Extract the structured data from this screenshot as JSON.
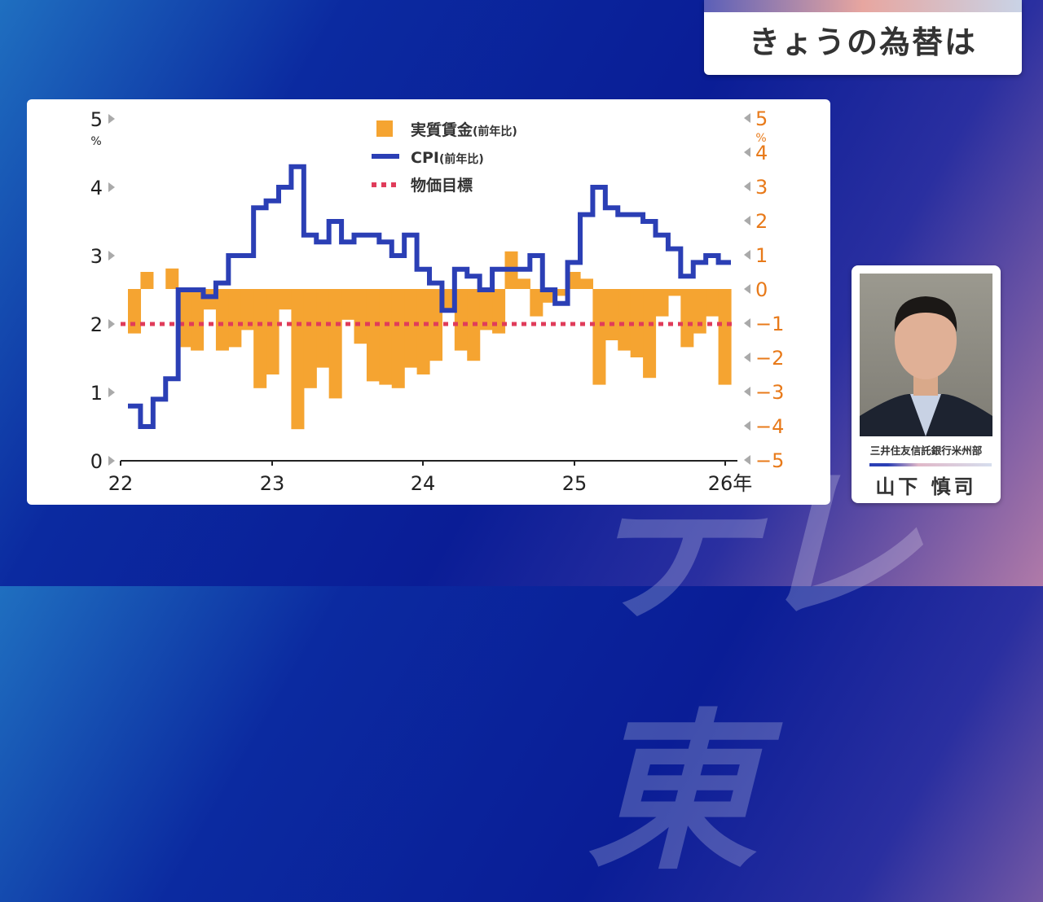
{
  "header": {
    "title": "きょうの為替は"
  },
  "watermark": "テレ東",
  "guest": {
    "organization": "三井住友信託銀行米州部",
    "name": "山下 慎司"
  },
  "colors": {
    "wages": "#f5a431",
    "cpi": "#2b3fb5",
    "target": "#e03c5a",
    "right_axis": "#e87a1a"
  },
  "chart_data": {
    "type": "bar+line",
    "title": "",
    "legend": [
      {
        "label": "実質賃金",
        "sub": "(前年比)"
      },
      {
        "label": "CPI",
        "sub": "(前年比)"
      },
      {
        "label": "物価目標",
        "sub": ""
      }
    ],
    "legend_placement": "top-center",
    "x_ticks": [
      "22",
      "23",
      "24",
      "25",
      "26年"
    ],
    "left_axis": {
      "unit": "%",
      "ticks": [
        "0",
        "1",
        "2",
        "3",
        "4",
        "5"
      ],
      "ylim": [
        0,
        5
      ]
    },
    "right_axis": {
      "unit": "%",
      "ticks": [
        "5",
        "4",
        "3",
        "2",
        "1",
        "0",
        "−1",
        "−2",
        "−3",
        "−4",
        "−5"
      ],
      "ylim": [
        -5,
        5
      ]
    },
    "target": 2,
    "series": [
      {
        "name": "実質賃金(前年比)",
        "axis": "right",
        "type": "bar",
        "values": [
          -1.3,
          0.5,
          0,
          0.6,
          -1.7,
          -1.8,
          -0.6,
          -1.8,
          -1.7,
          -1.2,
          -2.9,
          -2.5,
          -0.6,
          -4.1,
          -2.9,
          -2.3,
          -3.2,
          -0.9,
          -1.6,
          -2.7,
          -2.8,
          -2.9,
          -2.3,
          -2.5,
          -2.1,
          -0.6,
          -1.8,
          -2.1,
          -1.2,
          -1.3,
          1.1,
          0.3,
          -0.8,
          -0.4,
          -0.2,
          0.5,
          0.3,
          -2.8,
          -1.5,
          -1.8,
          -2.0,
          -2.6,
          -0.8,
          -0.2,
          -1.7,
          -1.3,
          -0.8,
          -2.8
        ]
      },
      {
        "name": "CPI(前年比)",
        "axis": "left",
        "type": "step-line",
        "values": [
          0.8,
          0.5,
          0.9,
          1.2,
          2.5,
          2.5,
          2.4,
          2.6,
          3.0,
          3.0,
          3.7,
          3.8,
          4.0,
          4.3,
          3.3,
          3.2,
          3.5,
          3.2,
          3.3,
          3.3,
          3.2,
          3.0,
          3.3,
          2.8,
          2.6,
          2.2,
          2.8,
          2.7,
          2.5,
          2.8,
          2.8,
          2.8,
          3.0,
          2.5,
          2.3,
          2.9,
          3.6,
          4.0,
          3.7,
          3.6,
          3.6,
          3.5,
          3.3,
          3.1,
          2.7,
          2.9,
          3.0,
          2.9
        ]
      }
    ]
  }
}
